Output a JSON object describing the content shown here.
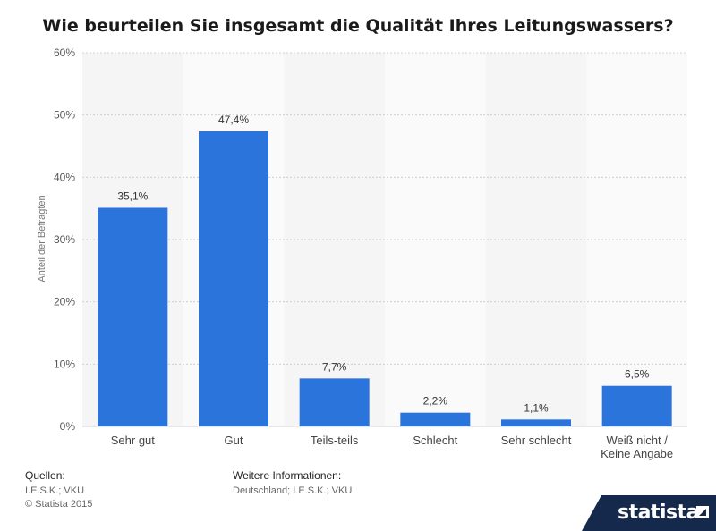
{
  "chart_data": {
    "type": "bar",
    "title": "Wie beurteilen Sie insgesamt die Qualität Ihres Leitungswassers?",
    "ylabel": "Anteil der Befragten",
    "xlabel": "",
    "ylim": [
      0,
      60
    ],
    "yticks": [
      0,
      10,
      20,
      30,
      40,
      50,
      60
    ],
    "ytick_labels": [
      "0%",
      "10%",
      "20%",
      "30%",
      "40%",
      "50%",
      "60%"
    ],
    "categories": [
      "Sehr gut",
      "Gut",
      "Teils-teils",
      "Schlecht",
      "Sehr schlecht",
      "Weiß nicht / Keine Angabe"
    ],
    "category_lines": [
      [
        "Sehr gut"
      ],
      [
        "Gut"
      ],
      [
        "Teils-teils"
      ],
      [
        "Schlecht"
      ],
      [
        "Sehr schlecht"
      ],
      [
        "Weiß nicht /",
        "Keine Angabe"
      ]
    ],
    "values": [
      35.1,
      47.4,
      7.7,
      2.2,
      1.1,
      6.5
    ],
    "value_labels": [
      "35,1%",
      "47,4%",
      "7,7%",
      "2,2%",
      "1,1%",
      "6,5%"
    ],
    "grid": true,
    "colors": {
      "bar": "#2a74dc",
      "band_light": "#f5f5f5",
      "band_lighter": "#fafafa",
      "grid": "#d0d0d0"
    }
  },
  "footer": {
    "sources_heading": "Quellen:",
    "sources_lines": [
      "I.E.S.K.; VKU",
      "© Statista 2015"
    ],
    "info_heading": "Weitere Informationen:",
    "info_lines": [
      "Deutschland; I.E.S.K.; VKU"
    ]
  },
  "logo": {
    "text": "statista",
    "icon": "statista-logo-icon"
  }
}
